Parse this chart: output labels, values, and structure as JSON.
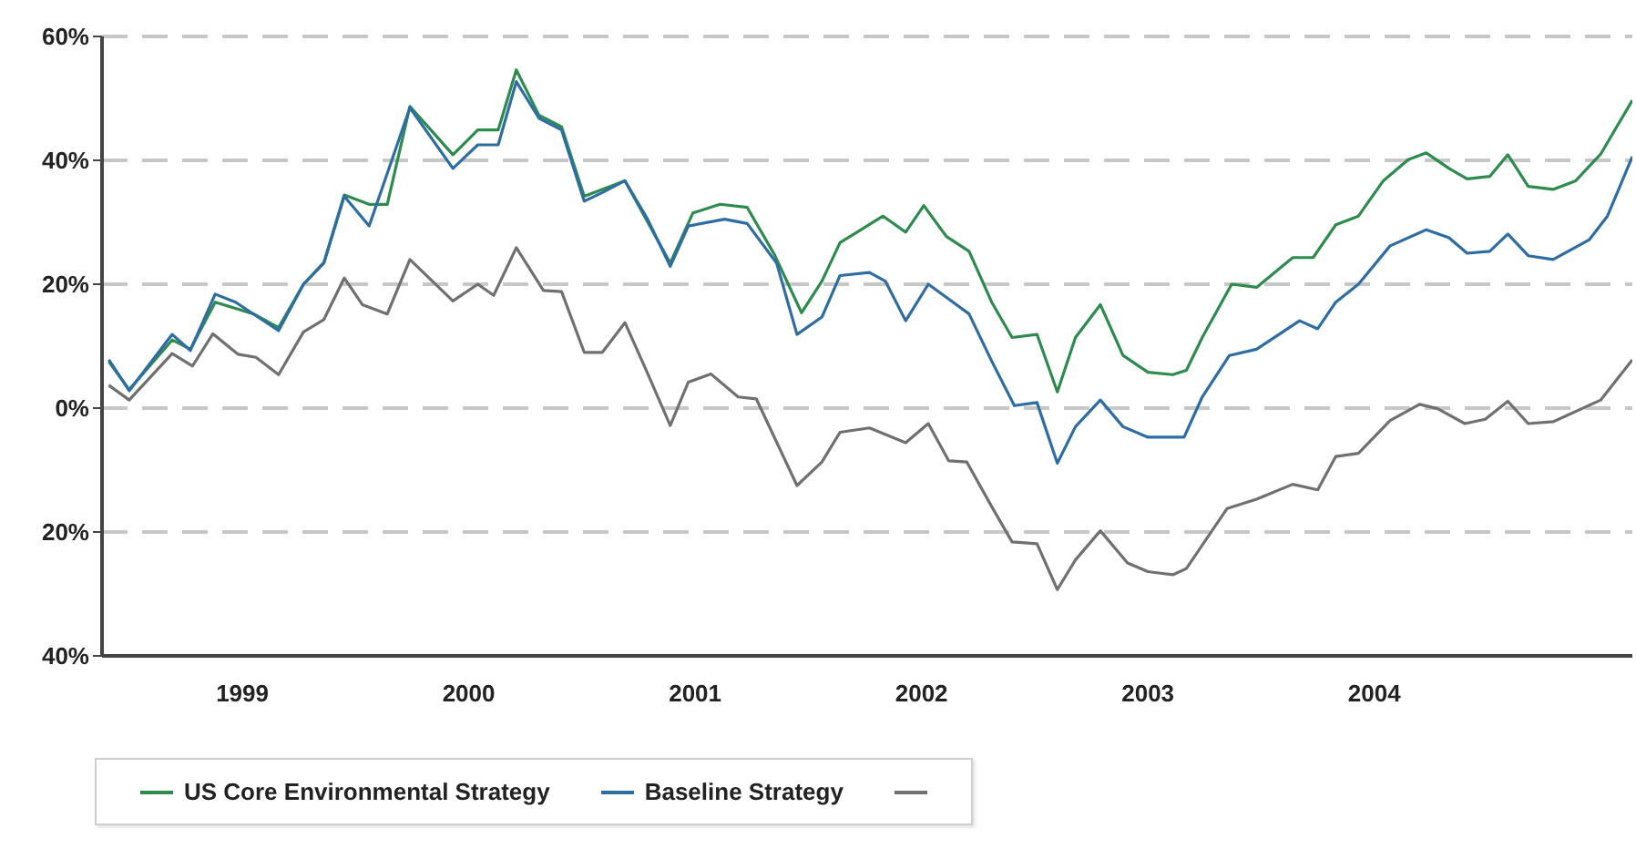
{
  "chart_data": {
    "type": "line",
    "xlim": [
      1998.38,
      2005.14
    ],
    "xticks": [
      1999,
      2000,
      2001,
      2002,
      2003,
      2004
    ],
    "ylim": [
      -40,
      60
    ],
    "yticks": [
      {
        "value": -40,
        "label": "40%"
      },
      {
        "value": -20,
        "label": "20%"
      },
      {
        "value": 0,
        "label": "0%"
      },
      {
        "value": 20,
        "label": "20%"
      },
      {
        "value": 40,
        "label": "40%"
      },
      {
        "value": 60,
        "label": "60%"
      }
    ],
    "grid": "y",
    "legend": "bottom",
    "line_style": "solid",
    "series": [
      {
        "name": "US Core Environmental Strategy",
        "color": "#2e8b4e",
        "x": [
          1998.41,
          1998.5,
          1998.69,
          1998.77,
          1998.88,
          1999.05,
          1999.16,
          1999.27,
          1999.36,
          1999.45,
          1999.56,
          1999.64,
          1999.74,
          1999.93,
          2000.04,
          2000.13,
          2000.21,
          2000.31,
          2000.41,
          2000.51,
          2000.69,
          2000.89,
          2000.99,
          2001.11,
          2001.23,
          2001.35,
          2001.47,
          2001.56,
          2001.64,
          2001.83,
          2001.93,
          2002.01,
          2002.11,
          2002.21,
          2002.31,
          2002.4,
          2002.51,
          2002.6,
          2002.68,
          2002.79,
          2002.89,
          2003.0,
          2003.11,
          2003.17,
          2003.24,
          2003.37,
          2003.48,
          2003.64,
          2003.73,
          2003.83,
          2003.93,
          2004.04,
          2004.15,
          2004.23,
          2004.33,
          2004.41,
          2004.51,
          2004.59,
          2004.68,
          2004.79,
          2004.89,
          2005.0,
          2005.14
        ],
        "values": [
          7.5,
          3,
          11,
          9.5,
          17.1,
          15.2,
          13,
          20,
          23.5,
          34.4,
          32.9,
          32.9,
          48.7,
          40.9,
          44.9,
          44.9,
          54.6,
          47.3,
          45.4,
          34.2,
          36.7,
          23.4,
          31.5,
          32.9,
          32.4,
          24.8,
          15.4,
          20.5,
          26.7,
          31,
          28.4,
          32.7,
          27.7,
          25.3,
          17.1,
          11.4,
          11.9,
          2.6,
          11.4,
          16.7,
          8.5,
          5.8,
          5.4,
          6.1,
          11.4,
          20,
          19.5,
          24.3,
          24.3,
          29.6,
          31,
          36.7,
          40.1,
          41.2,
          38.7,
          37,
          37.4,
          40.9,
          35.8,
          35.3,
          36.7,
          41,
          49.7
        ]
      },
      {
        "name": "Baseline Strategy",
        "color": "#2e6da4",
        "x": [
          1998.41,
          1998.5,
          1998.69,
          1998.77,
          1998.88,
          1998.97,
          1999.16,
          1999.27,
          1999.36,
          1999.45,
          1999.56,
          1999.74,
          1999.93,
          2000.04,
          2000.13,
          2000.21,
          2000.31,
          2000.41,
          2000.51,
          2000.59,
          2000.69,
          2000.79,
          2000.89,
          2000.97,
          2001.13,
          2001.23,
          2001.36,
          2001.45,
          2001.56,
          2001.64,
          2001.77,
          2001.84,
          2001.93,
          2002.03,
          2002.12,
          2002.21,
          2002.31,
          2002.41,
          2002.51,
          2002.6,
          2002.68,
          2002.79,
          2002.89,
          2003.0,
          2003.16,
          2003.24,
          2003.36,
          2003.48,
          2003.67,
          2003.75,
          2003.83,
          2003.93,
          2004.07,
          2004.23,
          2004.33,
          2004.41,
          2004.51,
          2004.59,
          2004.68,
          2004.79,
          2004.95,
          2005.03,
          2005.14
        ],
        "values": [
          7.8,
          2.8,
          11.9,
          9.3,
          18.4,
          17.1,
          12.5,
          20,
          23.4,
          34.2,
          29.4,
          48.5,
          38.7,
          42.5,
          42.5,
          52.7,
          46.8,
          44.9,
          33.4,
          34.8,
          36.7,
          30.5,
          22.9,
          29.4,
          30.5,
          29.8,
          23.4,
          11.9,
          14.7,
          21.4,
          21.9,
          20.5,
          14.1,
          20,
          17.6,
          15.2,
          7.6,
          0.4,
          0.9,
          -8.9,
          -3,
          1.3,
          -3,
          -4.7,
          -4.7,
          1.8,
          8.5,
          9.5,
          14.1,
          12.8,
          17.1,
          20,
          26.2,
          28.8,
          27.5,
          25,
          25.3,
          28.1,
          24.6,
          24,
          27.2,
          31,
          40.6
        ]
      },
      {
        "color": "#707070",
        "x": [
          1998.41,
          1998.5,
          1998.69,
          1998.78,
          1998.87,
          1998.98,
          1999.06,
          1999.16,
          1999.27,
          1999.36,
          1999.45,
          1999.53,
          1999.64,
          1999.74,
          1999.93,
          2000.04,
          2000.11,
          2000.21,
          2000.33,
          2000.41,
          2000.51,
          2000.59,
          2000.69,
          2000.79,
          2000.89,
          2000.97,
          2001.07,
          2001.19,
          2001.27,
          2001.45,
          2001.56,
          2001.64,
          2001.77,
          2001.93,
          2002.03,
          2002.12,
          2002.2,
          2002.31,
          2002.4,
          2002.51,
          2002.6,
          2002.68,
          2002.79,
          2002.91,
          2003.0,
          2003.11,
          2003.17,
          2003.35,
          2003.48,
          2003.64,
          2003.75,
          2003.83,
          2003.93,
          2004.07,
          2004.2,
          2004.28,
          2004.4,
          2004.49,
          2004.59,
          2004.68,
          2004.79,
          2005.0,
          2005.14
        ],
        "values": [
          3.7,
          1.3,
          8.8,
          6.8,
          12,
          8.7,
          8.2,
          5.4,
          12.3,
          14.3,
          21,
          16.7,
          15.2,
          24,
          17.3,
          20,
          18.2,
          25.9,
          19,
          18.8,
          9,
          9,
          13.8,
          5.6,
          -2.8,
          4.2,
          5.5,
          1.8,
          1.5,
          -12.5,
          -8.7,
          -3.9,
          -3.2,
          -5.6,
          -2.5,
          -8.5,
          -8.7,
          -15.9,
          -21.6,
          -21.9,
          -29.3,
          -24.5,
          -19.8,
          -25,
          -26.4,
          -26.9,
          -25.9,
          -16.2,
          -14.7,
          -12.3,
          -13.2,
          -7.8,
          -7.3,
          -2,
          0.6,
          -0.1,
          -2.5,
          -1.8,
          1.1,
          -2.5,
          -2.2,
          1.3,
          7.8
        ]
      }
    ]
  }
}
